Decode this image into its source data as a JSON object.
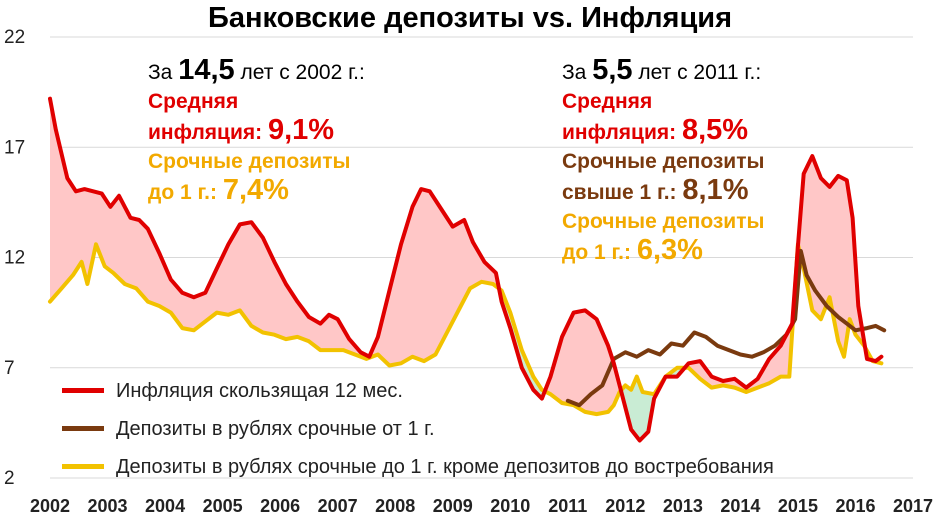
{
  "chart_data": {
    "type": "line",
    "title": "Банковские депозиты vs. Инфляция",
    "x_ticks": [
      "2002",
      "2003",
      "2004",
      "2005",
      "2006",
      "2007",
      "2008",
      "2009",
      "2010",
      "2011",
      "2012",
      "2013",
      "2014",
      "2015",
      "2016",
      "2017"
    ],
    "y_ticks": [
      "2",
      "7",
      "12",
      "17",
      "22"
    ],
    "ylim": [
      2,
      22
    ],
    "xlim": [
      2002,
      2017
    ],
    "grid": "horizontal",
    "legend_placement": "bottom-left",
    "series": [
      {
        "name": "Инфляция скользящая 12 мес.",
        "color": "#e00000",
        "points": [
          [
            2002.0,
            19.2
          ],
          [
            2002.1,
            17.8
          ],
          [
            2002.3,
            15.6
          ],
          [
            2002.45,
            15.0
          ],
          [
            2002.6,
            15.1
          ],
          [
            2002.9,
            14.9
          ],
          [
            2003.05,
            14.3
          ],
          [
            2003.2,
            14.8
          ],
          [
            2003.4,
            13.8
          ],
          [
            2003.55,
            13.7
          ],
          [
            2003.7,
            13.3
          ],
          [
            2003.9,
            12.2
          ],
          [
            2004.1,
            11.0
          ],
          [
            2004.3,
            10.4
          ],
          [
            2004.5,
            10.2
          ],
          [
            2004.7,
            10.4
          ],
          [
            2004.9,
            11.5
          ],
          [
            2005.1,
            12.6
          ],
          [
            2005.3,
            13.5
          ],
          [
            2005.5,
            13.6
          ],
          [
            2005.7,
            12.9
          ],
          [
            2005.9,
            11.8
          ],
          [
            2006.1,
            10.8
          ],
          [
            2006.3,
            10.0
          ],
          [
            2006.5,
            9.3
          ],
          [
            2006.7,
            9.0
          ],
          [
            2006.85,
            9.4
          ],
          [
            2007.0,
            9.2
          ],
          [
            2007.2,
            8.3
          ],
          [
            2007.4,
            7.7
          ],
          [
            2007.55,
            7.5
          ],
          [
            2007.7,
            8.4
          ],
          [
            2007.9,
            10.5
          ],
          [
            2008.1,
            12.6
          ],
          [
            2008.3,
            14.3
          ],
          [
            2008.45,
            15.1
          ],
          [
            2008.6,
            15.0
          ],
          [
            2008.8,
            14.2
          ],
          [
            2009.0,
            13.4
          ],
          [
            2009.2,
            13.7
          ],
          [
            2009.35,
            12.7
          ],
          [
            2009.55,
            11.8
          ],
          [
            2009.75,
            11.3
          ],
          [
            2009.85,
            10.0
          ],
          [
            2010.0,
            8.8
          ],
          [
            2010.2,
            7.0
          ],
          [
            2010.4,
            6.0
          ],
          [
            2010.55,
            5.6
          ],
          [
            2010.7,
            6.6
          ],
          [
            2010.9,
            8.4
          ],
          [
            2011.1,
            9.5
          ],
          [
            2011.3,
            9.6
          ],
          [
            2011.5,
            9.2
          ],
          [
            2011.7,
            8.0
          ],
          [
            2011.8,
            7.2
          ],
          [
            2011.9,
            6.2
          ],
          [
            2012.1,
            4.2
          ],
          [
            2012.25,
            3.7
          ],
          [
            2012.4,
            4.1
          ],
          [
            2012.5,
            5.6
          ],
          [
            2012.7,
            6.6
          ],
          [
            2012.9,
            6.6
          ],
          [
            2013.1,
            7.2
          ],
          [
            2013.3,
            7.3
          ],
          [
            2013.5,
            6.6
          ],
          [
            2013.7,
            6.4
          ],
          [
            2013.9,
            6.5
          ],
          [
            2014.1,
            6.1
          ],
          [
            2014.3,
            6.5
          ],
          [
            2014.5,
            7.4
          ],
          [
            2014.7,
            8.0
          ],
          [
            2014.9,
            9.0
          ],
          [
            2015.0,
            12.5
          ],
          [
            2015.1,
            15.8
          ],
          [
            2015.25,
            16.6
          ],
          [
            2015.4,
            15.6
          ],
          [
            2015.55,
            15.2
          ],
          [
            2015.7,
            15.7
          ],
          [
            2015.85,
            15.5
          ],
          [
            2015.95,
            13.8
          ],
          [
            2016.05,
            9.8
          ],
          [
            2016.2,
            7.4
          ],
          [
            2016.35,
            7.3
          ],
          [
            2016.45,
            7.5
          ]
        ]
      },
      {
        "name": "Депозиты в рублях срочные от 1 г.",
        "color": "#7a3a0f",
        "points": [
          [
            2011.0,
            5.5
          ],
          [
            2011.2,
            5.3
          ],
          [
            2011.4,
            5.8
          ],
          [
            2011.6,
            6.2
          ],
          [
            2011.8,
            7.4
          ],
          [
            2012.0,
            7.7
          ],
          [
            2012.2,
            7.5
          ],
          [
            2012.4,
            7.8
          ],
          [
            2012.6,
            7.6
          ],
          [
            2012.8,
            8.1
          ],
          [
            2013.0,
            8.0
          ],
          [
            2013.2,
            8.6
          ],
          [
            2013.4,
            8.4
          ],
          [
            2013.6,
            8.0
          ],
          [
            2013.8,
            7.8
          ],
          [
            2014.0,
            7.6
          ],
          [
            2014.2,
            7.5
          ],
          [
            2014.4,
            7.7
          ],
          [
            2014.6,
            8.0
          ],
          [
            2014.8,
            8.5
          ],
          [
            2014.95,
            9.2
          ],
          [
            2015.05,
            12.3
          ],
          [
            2015.15,
            11.2
          ],
          [
            2015.3,
            10.5
          ],
          [
            2015.5,
            9.8
          ],
          [
            2015.7,
            9.3
          ],
          [
            2015.85,
            9.0
          ],
          [
            2016.0,
            8.7
          ],
          [
            2016.2,
            8.8
          ],
          [
            2016.35,
            8.9
          ],
          [
            2016.5,
            8.7
          ]
        ]
      },
      {
        "name": "Депозиты в рублях срочные до 1 г. кроме депозитов до востребования",
        "color": "#f2c200",
        "points": [
          [
            2002.0,
            10.0
          ],
          [
            2002.2,
            10.6
          ],
          [
            2002.4,
            11.2
          ],
          [
            2002.55,
            11.8
          ],
          [
            2002.65,
            10.8
          ],
          [
            2002.8,
            12.6
          ],
          [
            2002.95,
            11.6
          ],
          [
            2003.1,
            11.3
          ],
          [
            2003.3,
            10.8
          ],
          [
            2003.5,
            10.6
          ],
          [
            2003.7,
            10.0
          ],
          [
            2003.9,
            9.8
          ],
          [
            2004.1,
            9.5
          ],
          [
            2004.3,
            8.8
          ],
          [
            2004.5,
            8.7
          ],
          [
            2004.7,
            9.1
          ],
          [
            2004.9,
            9.5
          ],
          [
            2005.1,
            9.4
          ],
          [
            2005.3,
            9.6
          ],
          [
            2005.5,
            8.9
          ],
          [
            2005.7,
            8.6
          ],
          [
            2005.9,
            8.5
          ],
          [
            2006.1,
            8.3
          ],
          [
            2006.3,
            8.4
          ],
          [
            2006.5,
            8.2
          ],
          [
            2006.7,
            7.8
          ],
          [
            2006.9,
            7.8
          ],
          [
            2007.1,
            7.8
          ],
          [
            2007.3,
            7.6
          ],
          [
            2007.5,
            7.4
          ],
          [
            2007.7,
            7.6
          ],
          [
            2007.9,
            7.1
          ],
          [
            2008.1,
            7.2
          ],
          [
            2008.3,
            7.5
          ],
          [
            2008.5,
            7.3
          ],
          [
            2008.7,
            7.6
          ],
          [
            2008.9,
            8.6
          ],
          [
            2009.1,
            9.6
          ],
          [
            2009.3,
            10.6
          ],
          [
            2009.5,
            10.9
          ],
          [
            2009.7,
            10.8
          ],
          [
            2009.85,
            10.5
          ],
          [
            2010.0,
            9.5
          ],
          [
            2010.2,
            7.8
          ],
          [
            2010.4,
            6.6
          ],
          [
            2010.55,
            6.0
          ],
          [
            2010.7,
            5.8
          ],
          [
            2010.9,
            5.4
          ],
          [
            2011.1,
            5.3
          ],
          [
            2011.3,
            5.0
          ],
          [
            2011.5,
            4.9
          ],
          [
            2011.7,
            5.0
          ],
          [
            2011.8,
            5.3
          ],
          [
            2011.9,
            5.9
          ],
          [
            2012.0,
            6.2
          ],
          [
            2012.1,
            6.0
          ],
          [
            2012.2,
            6.6
          ],
          [
            2012.3,
            5.9
          ],
          [
            2012.5,
            5.8
          ],
          [
            2012.7,
            6.6
          ],
          [
            2012.9,
            7.0
          ],
          [
            2013.1,
            7.0
          ],
          [
            2013.3,
            6.5
          ],
          [
            2013.5,
            6.1
          ],
          [
            2013.7,
            6.2
          ],
          [
            2013.9,
            6.1
          ],
          [
            2014.1,
            5.9
          ],
          [
            2014.3,
            6.1
          ],
          [
            2014.5,
            6.3
          ],
          [
            2014.7,
            6.6
          ],
          [
            2014.85,
            6.6
          ],
          [
            2015.0,
            12.6
          ],
          [
            2015.1,
            11.5
          ],
          [
            2015.25,
            9.6
          ],
          [
            2015.4,
            9.2
          ],
          [
            2015.55,
            10.2
          ],
          [
            2015.7,
            8.2
          ],
          [
            2015.8,
            7.5
          ],
          [
            2015.9,
            9.2
          ],
          [
            2016.0,
            8.5
          ],
          [
            2016.15,
            8.0
          ],
          [
            2016.3,
            7.3
          ],
          [
            2016.45,
            7.2
          ]
        ]
      }
    ]
  },
  "annotations": {
    "left": {
      "line1_prefix": "За",
      "line1_big": "14,5",
      "line1_suffix": "лет с 2002 г.:",
      "inflation_label_1": "Средняя",
      "inflation_label_2": "инфляция:",
      "inflation_value": "9,1%",
      "short_label_1": "Срочные депозиты",
      "short_label_2": "до 1 г.:",
      "short_value": "7,4%"
    },
    "right": {
      "line1_prefix": "За",
      "line1_big": "5,5",
      "line1_suffix": "лет с 2011 г.:",
      "inflation_label_1": "Средняя",
      "inflation_label_2": "инфляция:",
      "inflation_value": "8,5%",
      "long_label_1": "Срочные депозиты",
      "long_label_2": "свыше 1 г.:",
      "long_value": "8,1%",
      "short_label_1": "Срочные депозиты",
      "short_label_2": "до 1 г.:",
      "short_value": "6,3%"
    }
  },
  "colors": {
    "inflation": "#e00000",
    "long_deposits": "#7a3a0f",
    "short_deposits": "#f2c200",
    "gap_positive_fill": "#ffc7c7",
    "gap_negative_fill": "#c9ecd4",
    "grid": "#d9d9d9"
  }
}
